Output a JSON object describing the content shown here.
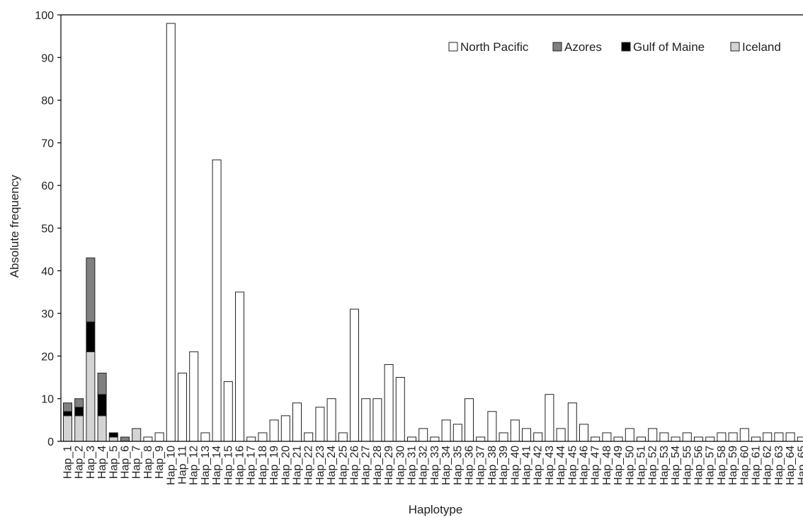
{
  "chart_data": {
    "type": "bar",
    "stacked": true,
    "title": "",
    "xlabel": "Haplotype",
    "ylabel": "Absolute frequency",
    "ylim": [
      0,
      100
    ],
    "yticks": [
      0,
      10,
      20,
      30,
      40,
      50,
      60,
      70,
      80,
      90,
      100
    ],
    "grid": false,
    "legend_position": "top-right",
    "categories": [
      "Hap_1",
      "Hap_2",
      "Hap_3",
      "Hap_4",
      "Hap_5",
      "Hap_6",
      "Hap_7",
      "Hap_8",
      "Hap_9",
      "Hap_10",
      "Hap_11",
      "Hap_12",
      "Hap_13",
      "Hap_14",
      "Hap_15",
      "Hap_16",
      "Hap_17",
      "Hap_18",
      "Hap_19",
      "Hap_20",
      "Hap_21",
      "Hap_22",
      "Hap_23",
      "Hap_24",
      "Hap_25",
      "Hap_26",
      "Hap_27",
      "Hap_28",
      "Hap_29",
      "Hap_30",
      "Hap_31",
      "Hap_32",
      "Hap_33",
      "Hap_34",
      "Hap_35",
      "Hap_36",
      "Hap_37",
      "Hap_38",
      "Hap_39",
      "Hap_40",
      "Hap_41",
      "Hap_42",
      "Hap_43",
      "Hap_44",
      "Hap_45",
      "Hap_46",
      "Hap_47",
      "Hap_48",
      "Hap_49",
      "Hap_50",
      "Hap_51",
      "Hap_52",
      "Hap_53",
      "Hap_54",
      "Hap_55",
      "Hap_56",
      "Hap_57",
      "Hap_58",
      "Hap_59",
      "Hap_60",
      "Hap_61",
      "Hap_62",
      "Hap_63",
      "Hap_64",
      "Hap_65"
    ],
    "series": [
      {
        "name": "Iceland",
        "color": "#d3d3d3",
        "values": [
          6,
          6,
          21,
          6,
          1,
          0,
          3,
          0,
          0,
          0,
          0,
          0,
          0,
          0,
          0,
          0,
          0,
          0,
          0,
          0,
          0,
          0,
          0,
          0,
          0,
          0,
          0,
          0,
          0,
          0,
          0,
          0,
          0,
          0,
          0,
          0,
          0,
          0,
          0,
          0,
          0,
          0,
          0,
          0,
          0,
          0,
          0,
          0,
          0,
          0,
          0,
          0,
          0,
          0,
          0,
          0,
          0,
          0,
          0,
          0,
          0,
          0,
          0,
          0,
          0
        ]
      },
      {
        "name": "Gulf of Maine",
        "color": "#000000",
        "values": [
          1,
          2,
          7,
          5,
          1,
          0,
          0,
          0,
          0,
          0,
          0,
          0,
          0,
          0,
          0,
          0,
          0,
          0,
          0,
          0,
          0,
          0,
          0,
          0,
          0,
          0,
          0,
          0,
          0,
          0,
          0,
          0,
          0,
          0,
          0,
          0,
          0,
          0,
          0,
          0,
          0,
          0,
          0,
          0,
          0,
          0,
          0,
          0,
          0,
          0,
          0,
          0,
          0,
          0,
          0,
          0,
          0,
          0,
          0,
          0,
          0,
          0,
          0,
          0,
          0
        ]
      },
      {
        "name": "Azores",
        "color": "#808080",
        "values": [
          2,
          2,
          15,
          5,
          0,
          1,
          0,
          0,
          0,
          0,
          0,
          0,
          0,
          0,
          0,
          0,
          0,
          0,
          0,
          0,
          0,
          0,
          0,
          0,
          0,
          0,
          0,
          0,
          0,
          0,
          0,
          0,
          0,
          0,
          0,
          0,
          0,
          0,
          0,
          0,
          0,
          0,
          0,
          0,
          0,
          0,
          0,
          0,
          0,
          0,
          0,
          0,
          0,
          0,
          0,
          0,
          0,
          0,
          0,
          0,
          0,
          0,
          0,
          0,
          0
        ]
      },
      {
        "name": "North Pacific",
        "color": "#ffffff",
        "values": [
          0,
          0,
          0,
          0,
          0,
          0,
          0,
          1,
          2,
          98,
          16,
          21,
          2,
          66,
          14,
          35,
          1,
          2,
          5,
          6,
          9,
          2,
          8,
          10,
          2,
          31,
          10,
          10,
          18,
          15,
          1,
          3,
          1,
          5,
          4,
          10,
          1,
          7,
          2,
          5,
          3,
          2,
          11,
          3,
          9,
          4,
          1,
          2,
          1,
          3,
          1,
          3,
          2,
          1,
          2,
          1,
          1,
          2,
          2,
          3,
          1,
          2,
          2,
          2,
          1
        ]
      }
    ],
    "legend": [
      {
        "name": "North Pacific",
        "color": "#ffffff"
      },
      {
        "name": "Azores",
        "color": "#808080"
      },
      {
        "name": "Gulf of Maine",
        "color": "#000000"
      },
      {
        "name": "Iceland",
        "color": "#d3d3d3"
      }
    ]
  }
}
